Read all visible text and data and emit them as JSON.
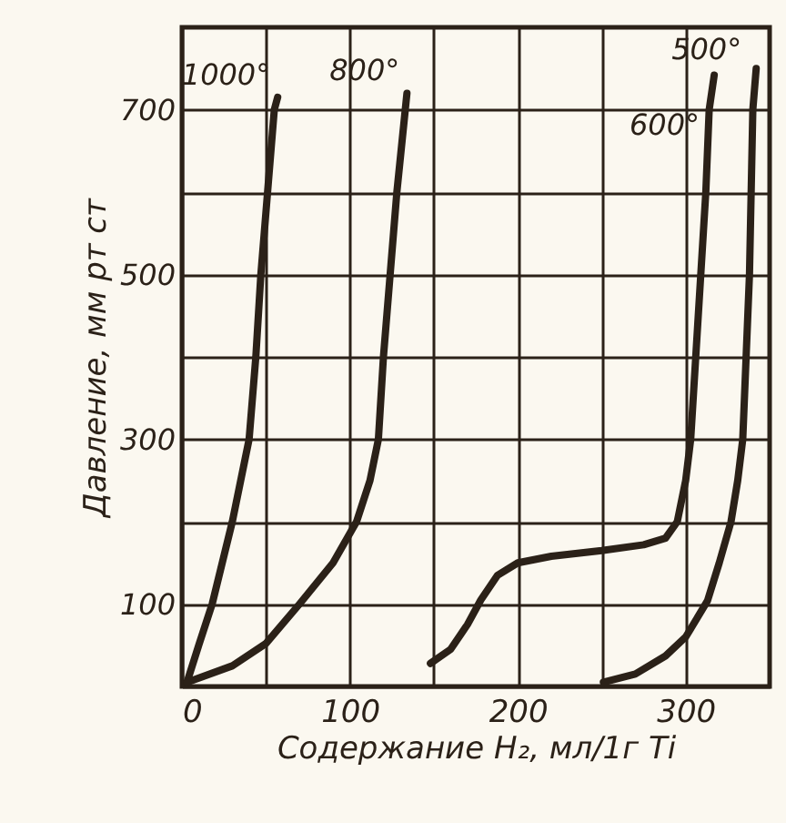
{
  "chart_data": {
    "type": "line",
    "xlabel": "Содержание H₂, мл/1г Ti",
    "ylabel": "Давление, мм рт ст",
    "xlim": [
      0,
      350
    ],
    "xticks": [
      0,
      {
        "value": 50,
        "label": null
      },
      100,
      {
        "value": 150,
        "label": null
      },
      200,
      {
        "value": 250,
        "label": null
      },
      300
    ],
    "ylim": [
      0,
      800
    ],
    "yticks": [
      {
        "value": 0,
        "label": null
      },
      100,
      {
        "value": 200,
        "label": null
      },
      300,
      {
        "value": 400,
        "label": null
      },
      500,
      {
        "value": 600,
        "label": null
      },
      700
    ],
    "grid": true,
    "legend": false,
    "marker": "none",
    "line_style": "solid",
    "series": [
      {
        "name": "1000°",
        "color": "#2b2118",
        "x": [
          3,
          10,
          18,
          30,
          40,
          44,
          47,
          51,
          55,
          57
        ],
        "values": [
          5,
          50,
          100,
          200,
          300,
          400,
          500,
          600,
          700,
          715
        ]
      },
      {
        "name": "800°",
        "color": "#2b2118",
        "x": [
          3,
          30,
          50,
          70,
          90,
          104,
          112,
          117,
          120,
          124,
          128,
          133,
          134
        ],
        "values": [
          5,
          25,
          52,
          100,
          150,
          200,
          250,
          300,
          400,
          500,
          600,
          700,
          720
        ]
      },
      {
        "name": "600°",
        "color": "#2b2118",
        "x": [
          148,
          160,
          170,
          178,
          188,
          200,
          220,
          250,
          275,
          288,
          295,
          300,
          303,
          306,
          309,
          312,
          314,
          317
        ],
        "values": [
          28,
          45,
          75,
          105,
          135,
          150,
          158,
          165,
          172,
          180,
          200,
          250,
          300,
          400,
          500,
          600,
          700,
          742
        ]
      },
      {
        "name": "500°",
        "color": "#2b2118",
        "x": [
          251,
          270,
          288,
          300,
          313,
          320,
          327,
          331,
          334,
          336,
          338,
          339,
          340,
          342
        ],
        "values": [
          5,
          15,
          37,
          60,
          104,
          150,
          200,
          250,
          300,
          400,
          500,
          600,
          700,
          750
        ]
      }
    ]
  }
}
